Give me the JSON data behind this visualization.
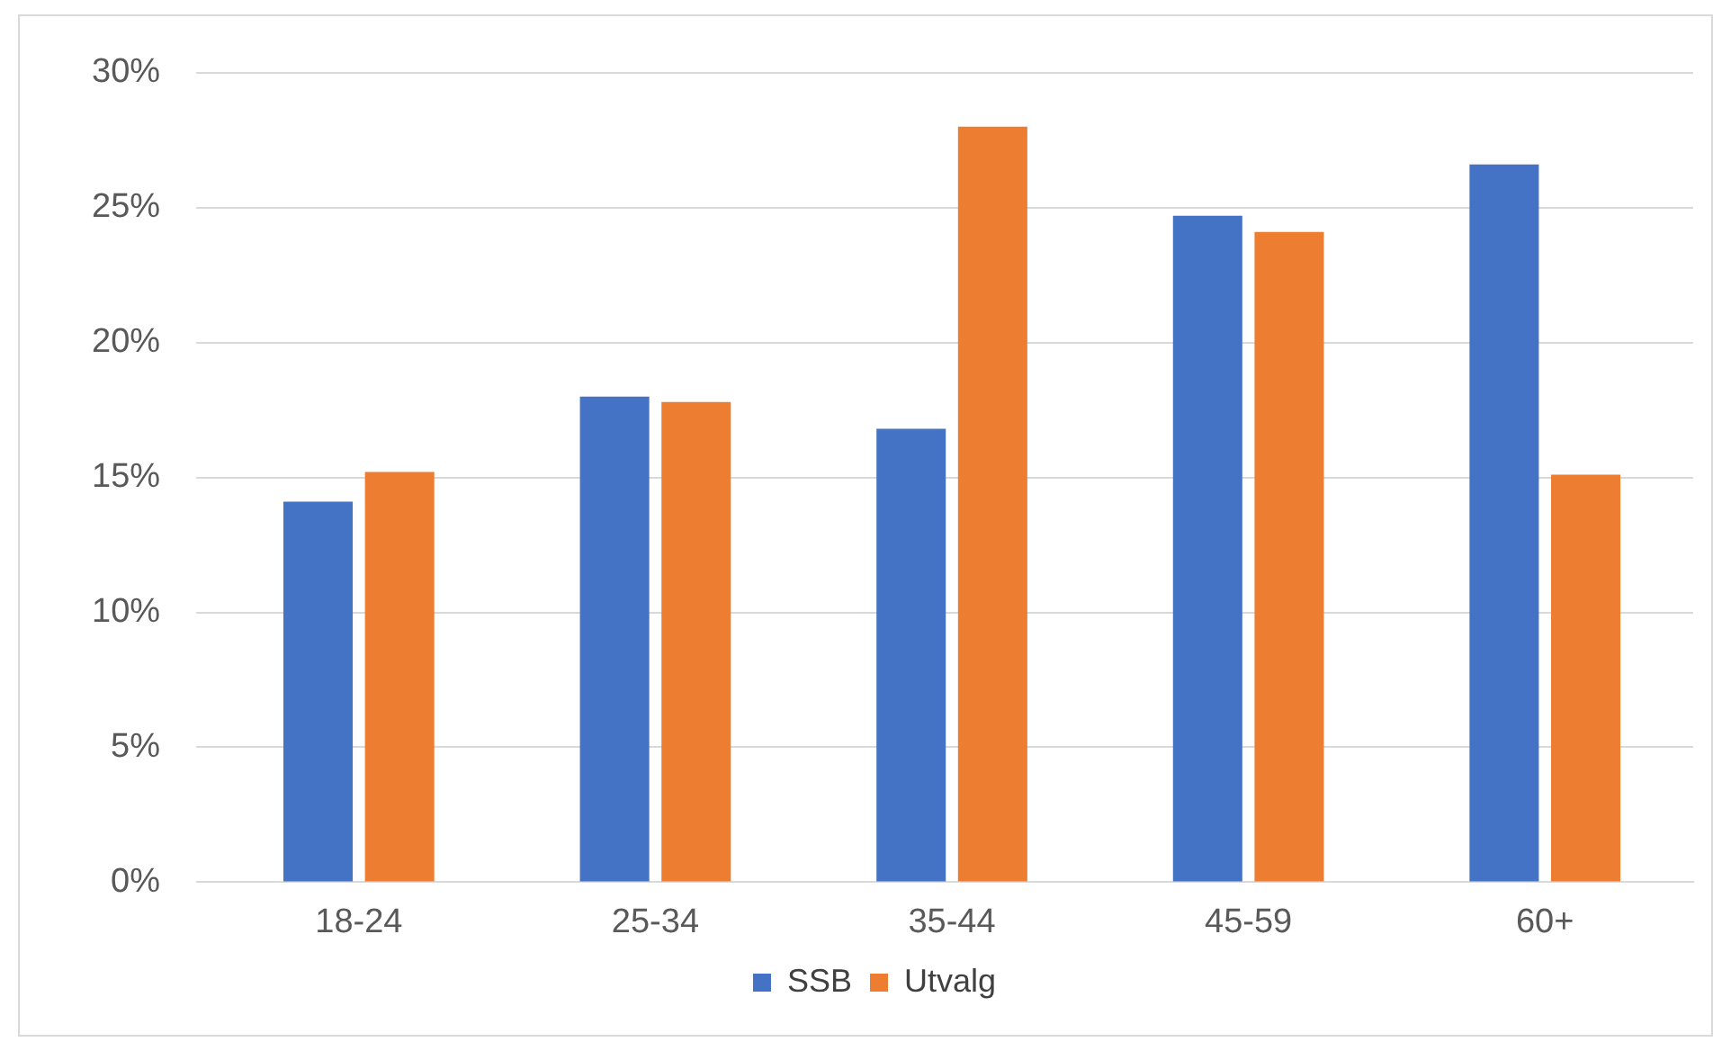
{
  "chart_data": {
    "type": "bar",
    "categories": [
      "18-24",
      "25-34",
      "35-44",
      "45-59",
      "60+"
    ],
    "series": [
      {
        "name": "SSB",
        "color": "#4472c4",
        "values": [
          14.1,
          18.0,
          16.8,
          24.7,
          26.6
        ]
      },
      {
        "name": "Utvalg",
        "color": "#ed7d31",
        "values": [
          15.2,
          17.8,
          28.0,
          24.1,
          15.1
        ]
      }
    ],
    "ylim": [
      0,
      30
    ],
    "yticks": [
      {
        "value": 0,
        "label": "0%"
      },
      {
        "value": 5,
        "label": "5%"
      },
      {
        "value": 10,
        "label": "10%"
      },
      {
        "value": 15,
        "label": "15%"
      },
      {
        "value": 20,
        "label": "20%"
      },
      {
        "value": 25,
        "label": "25%"
      },
      {
        "value": 30,
        "label": "30%"
      }
    ],
    "grid": "y",
    "legend": "bottom"
  }
}
